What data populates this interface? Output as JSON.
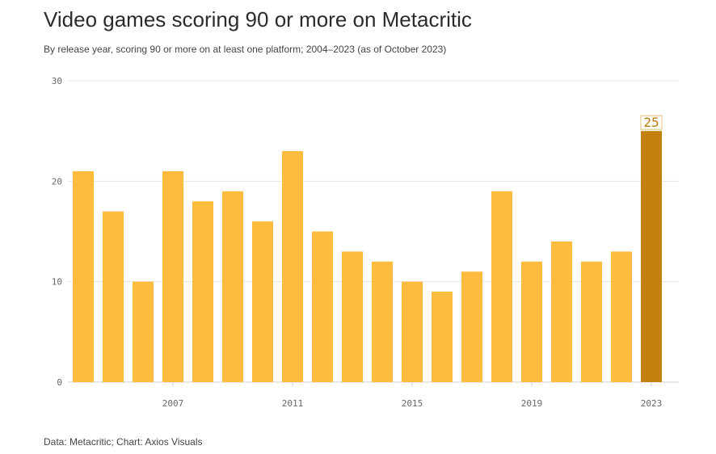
{
  "title": "Video games scoring 90 or more on Metacritic",
  "subtitle": "By release year, scoring 90 or more on at least one platform; 2004–2023 (as of October 2023)",
  "source": "Data: Metacritic; Chart: Axios Visuals",
  "chart_data": {
    "type": "bar",
    "categories": [
      "2004",
      "2005",
      "2006",
      "2007",
      "2008",
      "2009",
      "2010",
      "2011",
      "2012",
      "2013",
      "2014",
      "2015",
      "2016",
      "2017",
      "2018",
      "2019",
      "2020",
      "2021",
      "2022",
      "2023"
    ],
    "values": [
      21,
      17,
      10,
      21,
      18,
      19,
      16,
      23,
      15,
      13,
      12,
      10,
      9,
      11,
      19,
      12,
      14,
      12,
      13,
      25
    ],
    "x_tick_labels": [
      "2007",
      "2011",
      "2015",
      "2019",
      "2023"
    ],
    "y_ticks": [
      "0",
      "10",
      "20",
      "30"
    ],
    "ylim": [
      0,
      30
    ],
    "highlight": {
      "category": "2023",
      "label": "25"
    },
    "colors": {
      "bar": "#fdbc3e",
      "highlight": "#c2810f",
      "label": "#b67c0e"
    },
    "grid": true
  }
}
